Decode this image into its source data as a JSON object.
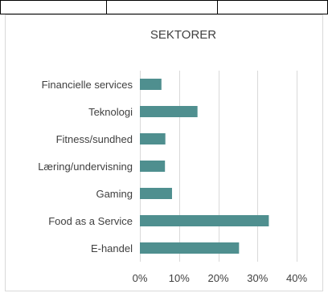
{
  "chart_data": {
    "type": "bar",
    "orientation": "horizontal",
    "title": "SEKTORER",
    "categories": [
      "Financielle services",
      "Teknologi",
      "Fitness/sundhed",
      "Læring/undervisning",
      "Gaming",
      "Food as a Service",
      "E-handel"
    ],
    "values": [
      0.055,
      0.147,
      0.065,
      0.064,
      0.082,
      0.329,
      0.253
    ],
    "xlim": [
      0,
      0.4
    ],
    "xticks": [
      0,
      0.1,
      0.2,
      0.3,
      0.4
    ],
    "xtick_labels": [
      "0%",
      "10%",
      "20%",
      "30%",
      "40%"
    ],
    "xlabel": "",
    "ylabel": "",
    "grid": "vertical",
    "legend": "none",
    "colors": {
      "bar": "#4f8f8f",
      "grid": "#d9d9d9",
      "text": "#404040",
      "frame": "#d9d9d9"
    }
  }
}
